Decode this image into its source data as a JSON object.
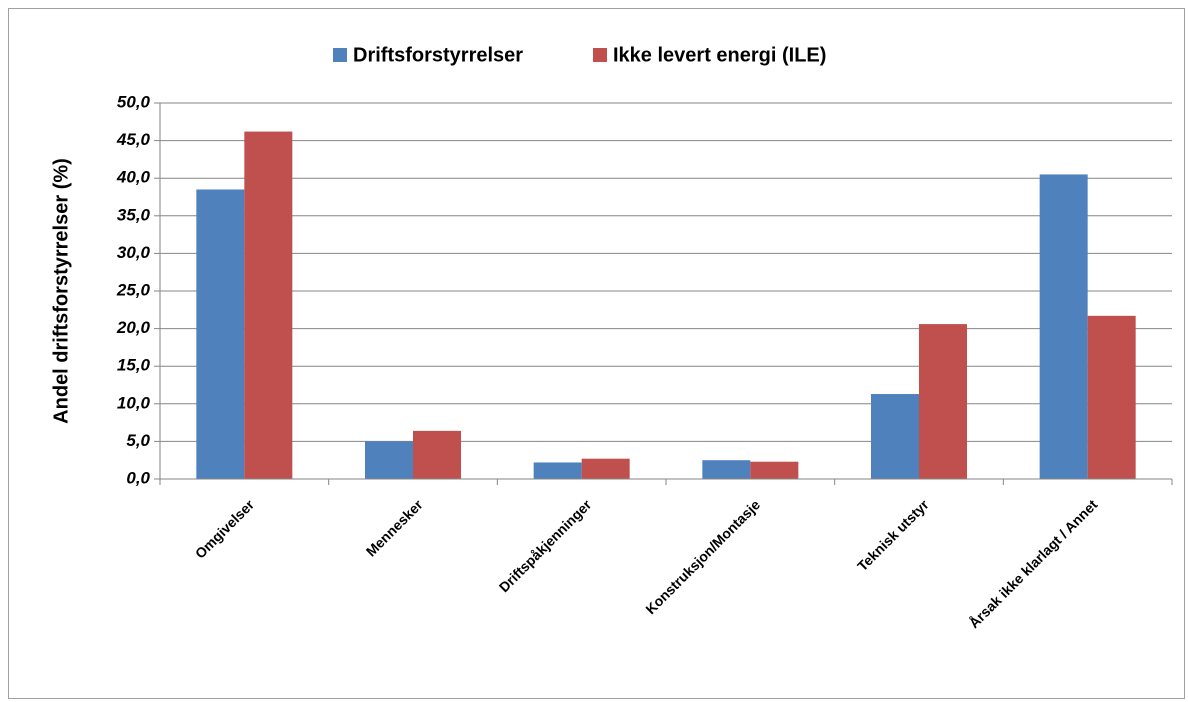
{
  "chart_data": {
    "type": "bar",
    "y_axis_label": "Andel driftsforstyrrelser (%)",
    "categories": [
      "Omgivelser",
      "Mennesker",
      "Driftspåkjenninger",
      "Konstruksjon/Montasje",
      "Teknisk utstyr",
      "Årsak ikke klarlagt / Annet"
    ],
    "series": [
      {
        "name": "Driftsforstyrrelser",
        "color": "#4f81bd",
        "values": [
          38.5,
          5.0,
          2.2,
          2.5,
          11.3,
          40.5
        ]
      },
      {
        "name": "Ikke levert energi (ILE)",
        "color": "#c0504d",
        "values": [
          46.2,
          6.4,
          2.7,
          2.3,
          20.6,
          21.7
        ]
      }
    ],
    "ylim": [
      0,
      50
    ],
    "yticks": [
      {
        "value": 0,
        "label": "0,0"
      },
      {
        "value": 5,
        "label": "5,0"
      },
      {
        "value": 10,
        "label": "10,0"
      },
      {
        "value": 15,
        "label": "15,0"
      },
      {
        "value": 20,
        "label": "20,0"
      },
      {
        "value": 25,
        "label": "25,0"
      },
      {
        "value": 30,
        "label": "30,0"
      },
      {
        "value": 35,
        "label": "35,0"
      },
      {
        "value": 40,
        "label": "40,0"
      },
      {
        "value": 45,
        "label": "45,0"
      },
      {
        "value": 50,
        "label": "50,0"
      }
    ],
    "grid": true,
    "legend": "top"
  }
}
